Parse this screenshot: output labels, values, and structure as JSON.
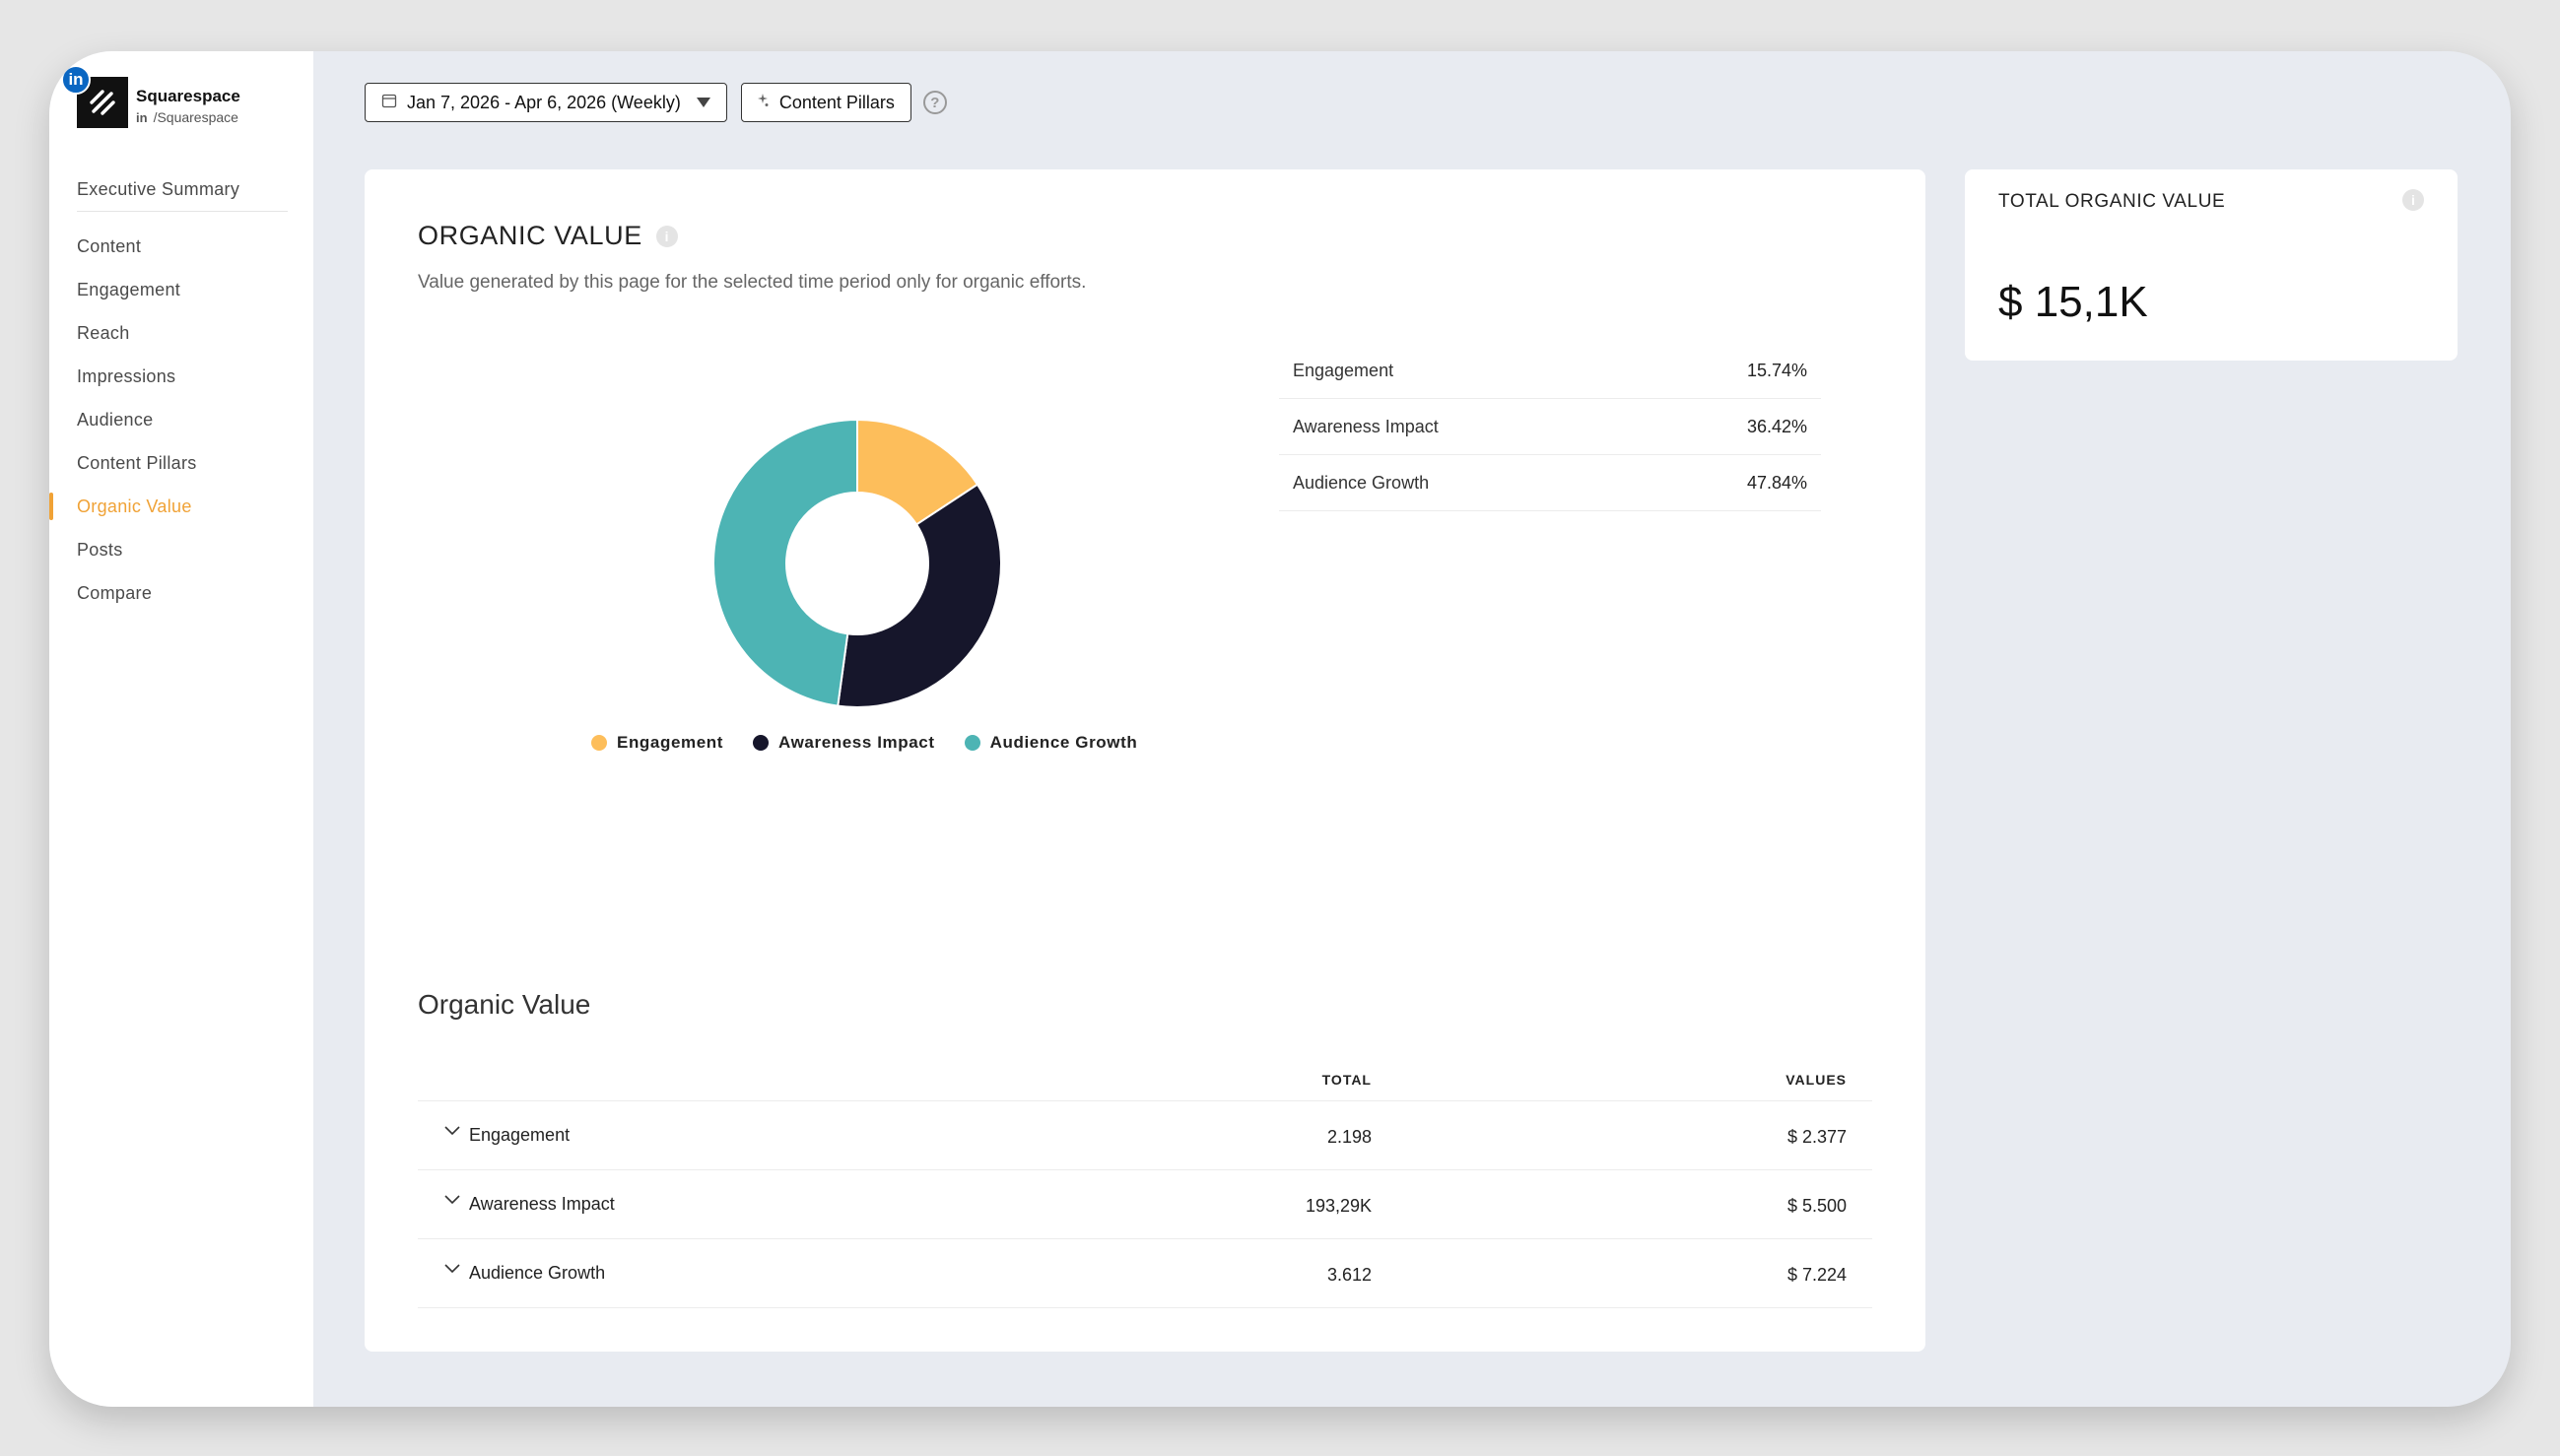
{
  "brand": {
    "name": "Squarespace",
    "network_badge": "in",
    "handle_prefix": "in",
    "handle": "/Squarespace"
  },
  "nav": {
    "items": [
      {
        "label": "Executive Summary"
      },
      {
        "label": "Content"
      },
      {
        "label": "Engagement"
      },
      {
        "label": "Reach"
      },
      {
        "label": "Impressions"
      },
      {
        "label": "Audience"
      },
      {
        "label": "Content Pillars"
      },
      {
        "label": "Organic Value"
      },
      {
        "label": "Posts"
      },
      {
        "label": "Compare"
      }
    ],
    "active": "Organic Value"
  },
  "toolbar": {
    "date_range": "Jan 7, 2026 - Apr 6, 2026 (Weekly)",
    "content_pillars": "Content Pillars",
    "help": "?"
  },
  "organic_card": {
    "title": "ORGANIC VALUE",
    "subtitle": "Value generated by this page for the selected time period only for organic efforts.",
    "info": "i"
  },
  "chart_data": {
    "type": "pie",
    "style": "donut",
    "categories": [
      "Engagement",
      "Awareness Impact",
      "Audience Growth"
    ],
    "values": [
      15.74,
      36.42,
      47.84
    ],
    "colors": [
      "#FDBE5B",
      "#16162B",
      "#4DB4B4"
    ],
    "legend_position": "bottom"
  },
  "breakdown": [
    {
      "label": "Engagement",
      "percent": "15.74%"
    },
    {
      "label": "Awareness Impact",
      "percent": "36.42%"
    },
    {
      "label": "Audience Growth",
      "percent": "47.84%"
    }
  ],
  "table": {
    "title": "Organic Value",
    "headers": {
      "total": "TOTAL",
      "values": "VALUES"
    },
    "rows": [
      {
        "name": "Engagement",
        "total": "2.198",
        "value": "$ 2.377"
      },
      {
        "name": "Awareness Impact",
        "total": "193,29K",
        "value": "$ 5.500"
      },
      {
        "name": "Audience Growth",
        "total": "3.612",
        "value": "$ 7.224"
      }
    ]
  },
  "total_card": {
    "title": "TOTAL ORGANIC VALUE",
    "value": "$ 15,1K",
    "info": "i"
  },
  "colors": {
    "accent": "#F0A236",
    "engagement": "#FDBE5B",
    "awareness": "#16162B",
    "growth": "#4DB4B4",
    "background": "#E8EBF1"
  },
  "icons": [
    "linkedin-icon",
    "squarespace-logo",
    "calendar-icon",
    "caret-down-icon",
    "sparkle-icon",
    "help-icon",
    "info-icon",
    "chevron-down-icon"
  ]
}
